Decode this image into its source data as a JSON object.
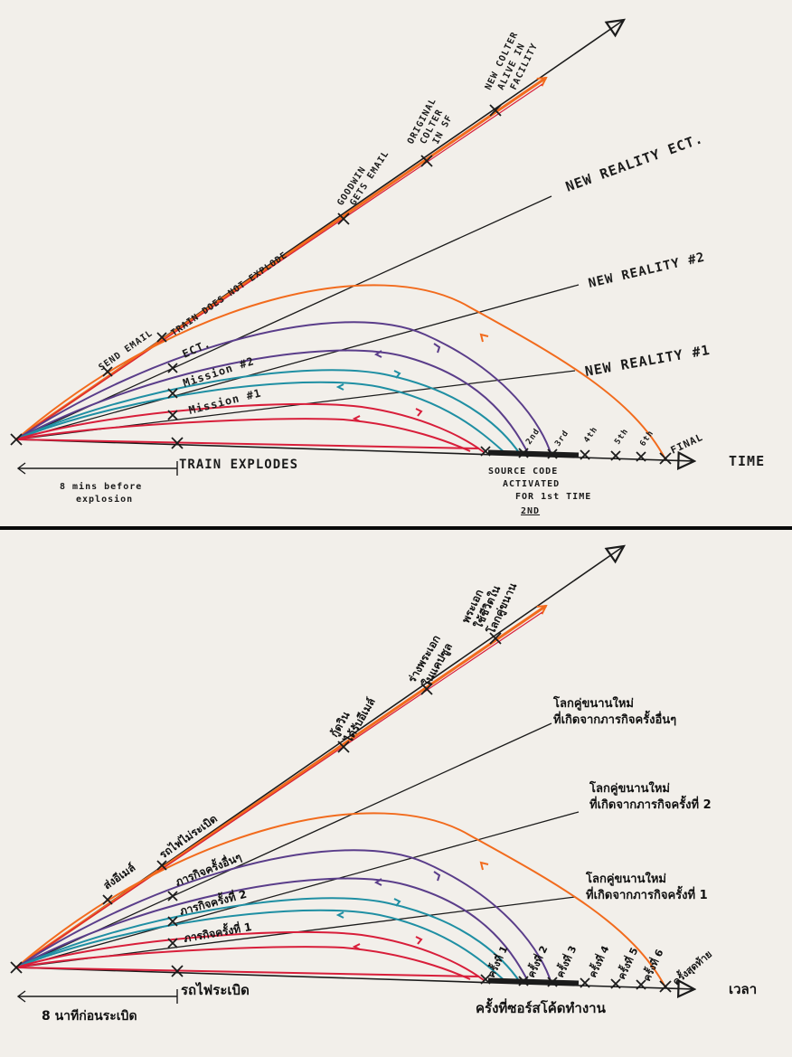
{
  "top_panel": {
    "axis_label": "TIME",
    "baseline_event": "TRAIN EXPLODES",
    "span_note": [
      "8 mins before",
      "explosion"
    ],
    "source_note": [
      "SOURCE CODE",
      "ACTIVATED",
      "FOR 1st TIME"
    ],
    "source_note_extra": "2ND",
    "tick_labels": [
      "2nd",
      "3rd",
      "4th",
      "5th",
      "6th",
      "FINAL"
    ],
    "branch_labels": {
      "reality_1": "NEW REALITY #1",
      "reality_2": "NEW REALITY #2",
      "reality_etc": "NEW REALITY ECT."
    },
    "line_labels": {
      "mission_1": "Mission #1",
      "mission_2": "Mission #2",
      "etc": "ECT."
    },
    "top_line_events": [
      "SEND EMAIL",
      "TRAIN DOES NOT EXPLODE",
      "GOODWIN GETS EMAIL",
      "ORIGINAL COLTER IN SF",
      "NEW COLTER ALIVE IN FACILITY"
    ],
    "event_lines": {
      "goodwin": [
        "GOODWIN",
        "GETS EMAIL"
      ],
      "original": [
        "ORIGINAL",
        "COLTER",
        "IN SF"
      ],
      "new_colter": [
        "NEW COLTER",
        "ALIVE IN",
        "FACILITY"
      ]
    }
  },
  "bottom_panel": {
    "axis_label": "เวลา",
    "baseline_event": "รถไฟระเบิด",
    "span_note": "8  นาทีก่อนระเบิด",
    "source_note": "ครั้งที่ซอร์สโค้ดทำงาน",
    "tick_labels": [
      "ครั้งที่ 1",
      "ครั้งที่ 2",
      "ครั้งที่ 3",
      "ครั้งที่ 4",
      "ครั้งที่ 5",
      "ครั้งที่ 6",
      "ครั้งสุดท้าย"
    ],
    "branch_labels": {
      "reality_1": [
        "โลกคู่ขนานใหม่",
        "ที่เกิดจากภารกิจครั้งที่ 1"
      ],
      "reality_2": [
        "โลกคู่ขนานใหม่",
        "ที่เกิดจากภารกิจครั้งที่ 2"
      ],
      "reality_etc": [
        "โลกคู่ขนานใหม่",
        "ที่เกิดจากภารกิจครั้งอื่นๆ"
      ]
    },
    "line_labels": {
      "mission_1": "ภารกิจครั้งที่ 1",
      "mission_2": "ภารกิจครั้งที่ 2",
      "etc": "ภารกิจครั้งอื่นๆ"
    },
    "top_line_events": {
      "send_email": "ส่งอีเมล์",
      "no_explode": "รถไฟไม่ระเบิด",
      "goodwin": [
        "กู้ดวิน",
        "ได้รับอีเมล์"
      ],
      "original": [
        "ร่างพระเอก",
        "ในแคปซูล"
      ],
      "new_colter": [
        "พระเอก",
        "ใช้ชีวิตใน",
        "โลกคู่ขนาน"
      ]
    }
  },
  "colors": {
    "ink": "#1b1b1b",
    "orange": "#f26b1d",
    "red": "#d81e3a",
    "purple": "#5a3d8a",
    "teal": "#1f8fa3",
    "paper": "#f2efea",
    "divider": "#0a0a0a"
  }
}
